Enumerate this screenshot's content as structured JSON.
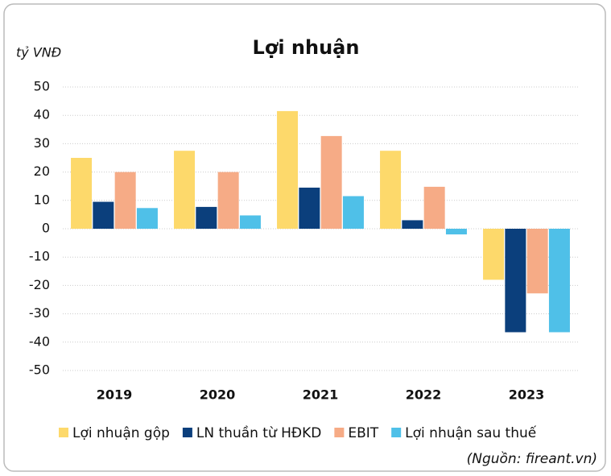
{
  "chart_data": {
    "type": "bar",
    "title": "Lợi nhuận",
    "y_label": "tỷ VNĐ",
    "source": "(Nguồn: fireant.vn)",
    "categories": [
      "2019",
      "2020",
      "2021",
      "2022",
      "2023"
    ],
    "series": [
      {
        "name": "Lợi nhuận gộp",
        "color": "#fdd96b",
        "values": [
          25,
          27.5,
          41.5,
          27.5,
          -18
        ]
      },
      {
        "name": "LN thuần từ HĐKD",
        "color": "#0b3f7c",
        "values": [
          9.5,
          7.7,
          14.5,
          3,
          -36.5
        ]
      },
      {
        "name": "EBIT",
        "color": "#f6ab86",
        "values": [
          20,
          20,
          32.7,
          14.8,
          -22.8
        ]
      },
      {
        "name": "Lợi nhuận sau thuế",
        "color": "#4fc0e8",
        "values": [
          7.3,
          4.7,
          11.5,
          -2,
          -36.5
        ]
      }
    ],
    "ylim": [
      -50,
      50
    ],
    "yticks": [
      -50,
      -40,
      -30,
      -20,
      -10,
      0,
      10,
      20,
      30,
      40,
      50
    ],
    "grid": true
  }
}
